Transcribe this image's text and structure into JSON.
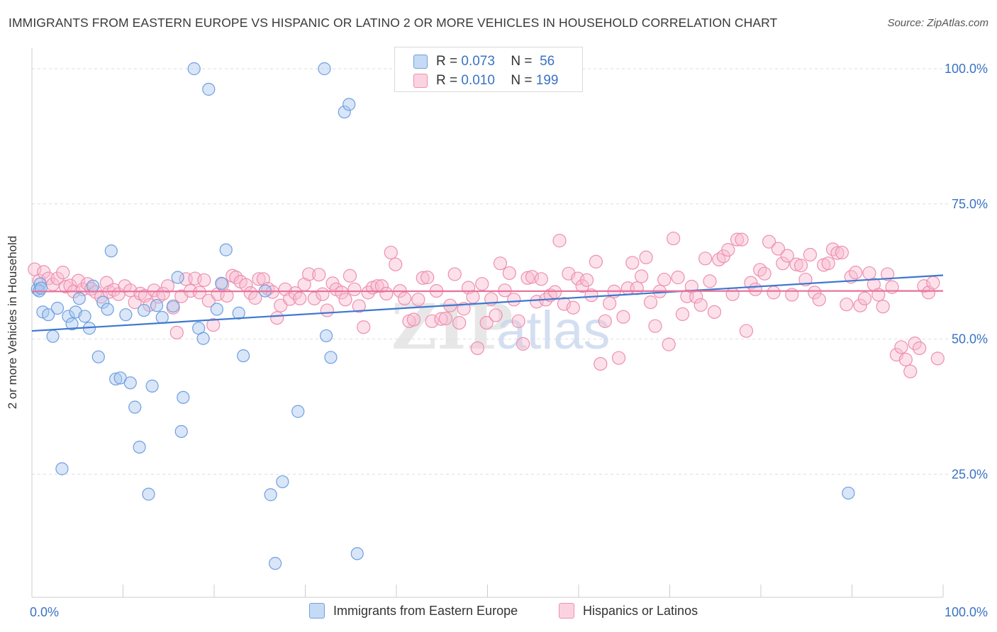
{
  "header": {
    "title": "IMMIGRANTS FROM EASTERN EUROPE VS HISPANIC OR LATINO 2 OR MORE VEHICLES IN HOUSEHOLD CORRELATION CHART",
    "source": "Source: ZipAtlas.com"
  },
  "watermark": {
    "zip": "ZIP",
    "atlas": "atlas"
  },
  "legend": {
    "r_label": "R =",
    "n_label": "N =",
    "rows": [
      {
        "r": "0.073",
        "n": "56",
        "color": "#a9c8f0",
        "stroke": "#6f9fe0"
      },
      {
        "r": "0.010",
        "n": "199",
        "color": "#f8bcd0",
        "stroke": "#ee8fb0"
      }
    ]
  },
  "bottom_legend": [
    {
      "label": "Immigrants from Eastern Europe",
      "color": "#a9c8f0",
      "stroke": "#6f9fe0"
    },
    {
      "label": "Hispanics or Latinos",
      "color": "#f8bcd0",
      "stroke": "#ee8fb0"
    }
  ],
  "chart_data": {
    "type": "scatter",
    "ylabel": "2 or more Vehicles in Household",
    "xlim": [
      0,
      100
    ],
    "ylim": [
      0,
      100
    ],
    "x_tick_labels": [
      {
        "value": 0,
        "label": "0.0%"
      },
      {
        "value": 100,
        "label": "100.0%"
      }
    ],
    "y_tick_labels": [
      {
        "value": 25,
        "label": "25.0%"
      },
      {
        "value": 50,
        "label": "50.0%"
      },
      {
        "value": 75,
        "label": "75.0%"
      },
      {
        "value": 100,
        "label": "100.0%"
      }
    ],
    "grid": "horizontal dashed",
    "series": [
      {
        "name": "Immigrants from Eastern Europe",
        "color": "#a9c8f0",
        "stroke": "#6f9fe0",
        "trend": {
          "x": [
            0,
            100
          ],
          "y": [
            51.5,
            61.8
          ],
          "color": "#3d78d0"
        },
        "points": [
          [
            0.6,
            59.2
          ],
          [
            0.9,
            60.2
          ],
          [
            1.2,
            55.0
          ],
          [
            1.8,
            54.5
          ],
          [
            2.3,
            50.5
          ],
          [
            2.8,
            55.7
          ],
          [
            3.3,
            26.0
          ],
          [
            4.0,
            54.2
          ],
          [
            4.4,
            52.8
          ],
          [
            4.8,
            55.0
          ],
          [
            5.2,
            57.5
          ],
          [
            5.8,
            54.2
          ],
          [
            6.3,
            52.0
          ],
          [
            6.7,
            59.8
          ],
          [
            7.3,
            46.7
          ],
          [
            7.8,
            56.8
          ],
          [
            8.3,
            55.5
          ],
          [
            8.7,
            66.3
          ],
          [
            9.2,
            42.6
          ],
          [
            9.7,
            42.8
          ],
          [
            10.3,
            54.5
          ],
          [
            10.8,
            41.9
          ],
          [
            11.3,
            37.4
          ],
          [
            11.8,
            30.0
          ],
          [
            12.3,
            55.3
          ],
          [
            12.8,
            21.3
          ],
          [
            13.2,
            41.3
          ],
          [
            13.7,
            56.2
          ],
          [
            14.3,
            54.0
          ],
          [
            15.5,
            56.1
          ],
          [
            16.0,
            61.4
          ],
          [
            16.6,
            39.2
          ],
          [
            16.4,
            32.9
          ],
          [
            17.8,
            100.0
          ],
          [
            19.4,
            96.2
          ],
          [
            18.3,
            52.0
          ],
          [
            18.8,
            50.1
          ],
          [
            20.3,
            55.5
          ],
          [
            20.8,
            60.3
          ],
          [
            21.3,
            66.5
          ],
          [
            22.7,
            54.8
          ],
          [
            23.2,
            46.9
          ],
          [
            25.6,
            58.9
          ],
          [
            26.2,
            21.2
          ],
          [
            26.7,
            8.5
          ],
          [
            27.5,
            23.6
          ],
          [
            29.2,
            36.6
          ],
          [
            32.1,
            100.0
          ],
          [
            32.3,
            50.6
          ],
          [
            32.8,
            46.6
          ],
          [
            34.3,
            92.0
          ],
          [
            34.8,
            93.4
          ],
          [
            35.7,
            10.3
          ],
          [
            89.6,
            21.5
          ],
          [
            0.8,
            58.9
          ],
          [
            1.0,
            59.4
          ]
        ]
      },
      {
        "name": "Hispanics or Latinos",
        "color": "#f8bcd0",
        "stroke": "#ee8fb0",
        "trend": {
          "x": [
            0,
            100
          ],
          "y": [
            58.8,
            58.9
          ],
          "color": "#e7719a"
        },
        "points": [
          [
            0.3,
            62.9
          ],
          [
            0.8,
            60.8
          ],
          [
            1.3,
            62.4
          ],
          [
            1.8,
            61.2
          ],
          [
            2.3,
            60.1
          ],
          [
            2.8,
            61.2
          ],
          [
            3.4,
            62.3
          ],
          [
            3.7,
            59.7
          ],
          [
            4.2,
            59.9
          ],
          [
            4.6,
            58.8
          ],
          [
            5.1,
            60.8
          ],
          [
            5.6,
            59.2
          ],
          [
            6.1,
            60.2
          ],
          [
            6.5,
            59.3
          ],
          [
            7.0,
            58.7
          ],
          [
            7.6,
            57.8
          ],
          [
            8.2,
            60.4
          ],
          [
            8.5,
            58.7
          ],
          [
            9.0,
            59.1
          ],
          [
            9.5,
            58.3
          ],
          [
            10.2,
            59.8
          ],
          [
            10.8,
            59.0
          ],
          [
            11.3,
            56.8
          ],
          [
            11.9,
            58.4
          ],
          [
            12.4,
            58.0
          ],
          [
            12.9,
            56.3
          ],
          [
            13.4,
            59.0
          ],
          [
            13.9,
            57.8
          ],
          [
            14.4,
            58.4
          ],
          [
            14.9,
            59.8
          ],
          [
            15.5,
            55.8
          ],
          [
            15.9,
            51.2
          ],
          [
            16.4,
            57.9
          ],
          [
            16.9,
            61.1
          ],
          [
            17.4,
            58.9
          ],
          [
            17.9,
            61.2
          ],
          [
            18.4,
            58.6
          ],
          [
            18.9,
            60.9
          ],
          [
            19.4,
            57.1
          ],
          [
            19.9,
            52.6
          ],
          [
            20.4,
            58.3
          ],
          [
            20.9,
            60.1
          ],
          [
            21.4,
            58.0
          ],
          [
            22.0,
            61.7
          ],
          [
            22.4,
            61.4
          ],
          [
            22.9,
            60.6
          ],
          [
            23.5,
            60.0
          ],
          [
            24.0,
            58.5
          ],
          [
            24.5,
            57.6
          ],
          [
            24.9,
            61.1
          ],
          [
            25.4,
            61.1
          ],
          [
            25.9,
            59.3
          ],
          [
            26.4,
            58.7
          ],
          [
            26.9,
            53.9
          ],
          [
            27.3,
            56.2
          ],
          [
            27.8,
            59.2
          ],
          [
            28.3,
            57.4
          ],
          [
            28.9,
            58.5
          ],
          [
            29.4,
            57.5
          ],
          [
            29.9,
            60.1
          ],
          [
            30.4,
            62.0
          ],
          [
            31.0,
            57.5
          ],
          [
            31.5,
            61.9
          ],
          [
            31.9,
            58.3
          ],
          [
            32.4,
            55.3
          ],
          [
            33.0,
            60.3
          ],
          [
            33.4,
            59.2
          ],
          [
            34.0,
            58.6
          ],
          [
            34.4,
            57.3
          ],
          [
            34.9,
            61.7
          ],
          [
            35.4,
            59.2
          ],
          [
            35.9,
            56.1
          ],
          [
            36.4,
            52.2
          ],
          [
            36.9,
            58.6
          ],
          [
            37.4,
            59.5
          ],
          [
            37.9,
            59.8
          ],
          [
            38.4,
            59.8
          ],
          [
            38.9,
            58.4
          ],
          [
            39.4,
            66.0
          ],
          [
            39.9,
            63.8
          ],
          [
            40.4,
            58.9
          ],
          [
            40.9,
            57.5
          ],
          [
            41.4,
            53.3
          ],
          [
            41.9,
            53.6
          ],
          [
            42.4,
            57.3
          ],
          [
            42.9,
            61.3
          ],
          [
            43.4,
            61.4
          ],
          [
            43.9,
            53.3
          ],
          [
            44.4,
            58.9
          ],
          [
            44.9,
            53.7
          ],
          [
            45.4,
            53.8
          ],
          [
            45.9,
            56.2
          ],
          [
            46.4,
            62.0
          ],
          [
            46.9,
            53.0
          ],
          [
            47.4,
            55.6
          ],
          [
            47.9,
            59.5
          ],
          [
            48.4,
            57.8
          ],
          [
            48.9,
            48.3
          ],
          [
            49.4,
            60.2
          ],
          [
            49.9,
            53.0
          ],
          [
            50.4,
            57.4
          ],
          [
            50.9,
            54.4
          ],
          [
            51.4,
            64.0
          ],
          [
            51.9,
            59.0
          ],
          [
            52.4,
            62.2
          ],
          [
            52.9,
            57.3
          ],
          [
            53.4,
            53.3
          ],
          [
            53.9,
            49.1
          ],
          [
            54.4,
            61.3
          ],
          [
            54.9,
            61.5
          ],
          [
            55.4,
            56.9
          ],
          [
            55.9,
            61.1
          ],
          [
            56.4,
            57.3
          ],
          [
            56.9,
            58.1
          ],
          [
            57.4,
            58.7
          ],
          [
            57.9,
            68.2
          ],
          [
            58.4,
            56.5
          ],
          [
            58.9,
            62.1
          ],
          [
            59.4,
            55.8
          ],
          [
            59.9,
            61.2
          ],
          [
            60.4,
            59.8
          ],
          [
            60.9,
            60.9
          ],
          [
            61.4,
            58.1
          ],
          [
            61.9,
            64.3
          ],
          [
            62.4,
            45.4
          ],
          [
            62.9,
            53.3
          ],
          [
            63.4,
            56.6
          ],
          [
            63.9,
            58.8
          ],
          [
            64.4,
            46.5
          ],
          [
            64.9,
            54.1
          ],
          [
            65.4,
            59.4
          ],
          [
            65.9,
            64.1
          ],
          [
            66.4,
            59.4
          ],
          [
            66.9,
            61.6
          ],
          [
            67.4,
            65.1
          ],
          [
            67.9,
            56.8
          ],
          [
            68.4,
            52.4
          ],
          [
            68.9,
            58.8
          ],
          [
            69.4,
            61.0
          ],
          [
            69.9,
            49.0
          ],
          [
            70.4,
            68.6
          ],
          [
            70.9,
            61.4
          ],
          [
            71.4,
            54.6
          ],
          [
            71.9,
            57.9
          ],
          [
            72.4,
            59.7
          ],
          [
            72.9,
            57.8
          ],
          [
            73.4,
            56.3
          ],
          [
            73.9,
            64.9
          ],
          [
            74.4,
            60.7
          ],
          [
            74.9,
            55.0
          ],
          [
            75.4,
            64.7
          ],
          [
            75.9,
            65.3
          ],
          [
            76.4,
            66.5
          ],
          [
            76.9,
            58.3
          ],
          [
            77.4,
            68.4
          ],
          [
            77.9,
            68.4
          ],
          [
            78.4,
            51.5
          ],
          [
            78.9,
            60.4
          ],
          [
            79.4,
            59.2
          ],
          [
            79.9,
            62.8
          ],
          [
            80.4,
            62.1
          ],
          [
            80.9,
            68.0
          ],
          [
            81.4,
            58.6
          ],
          [
            81.9,
            66.7
          ],
          [
            82.4,
            64.0
          ],
          [
            82.9,
            65.4
          ],
          [
            83.4,
            58.2
          ],
          [
            83.9,
            63.8
          ],
          [
            84.4,
            63.6
          ],
          [
            84.9,
            61.0
          ],
          [
            85.4,
            65.6
          ],
          [
            85.9,
            58.6
          ],
          [
            86.4,
            57.3
          ],
          [
            86.9,
            63.7
          ],
          [
            87.4,
            64.0
          ],
          [
            87.9,
            66.6
          ],
          [
            88.4,
            65.9
          ],
          [
            88.9,
            66.0
          ],
          [
            89.4,
            56.4
          ],
          [
            89.9,
            61.5
          ],
          [
            90.4,
            62.3
          ],
          [
            90.9,
            56.2
          ],
          [
            91.4,
            57.5
          ],
          [
            91.9,
            62.2
          ],
          [
            92.4,
            60.1
          ],
          [
            92.9,
            58.2
          ],
          [
            93.4,
            56.0
          ],
          [
            93.9,
            62.0
          ],
          [
            94.4,
            59.6
          ],
          [
            94.9,
            47.1
          ],
          [
            95.4,
            48.5
          ],
          [
            95.9,
            46.2
          ],
          [
            96.4,
            44.0
          ],
          [
            96.9,
            49.2
          ],
          [
            97.4,
            48.3
          ],
          [
            97.9,
            59.8
          ],
          [
            98.4,
            58.6
          ],
          [
            98.9,
            60.4
          ],
          [
            99.4,
            46.4
          ]
        ]
      }
    ]
  }
}
